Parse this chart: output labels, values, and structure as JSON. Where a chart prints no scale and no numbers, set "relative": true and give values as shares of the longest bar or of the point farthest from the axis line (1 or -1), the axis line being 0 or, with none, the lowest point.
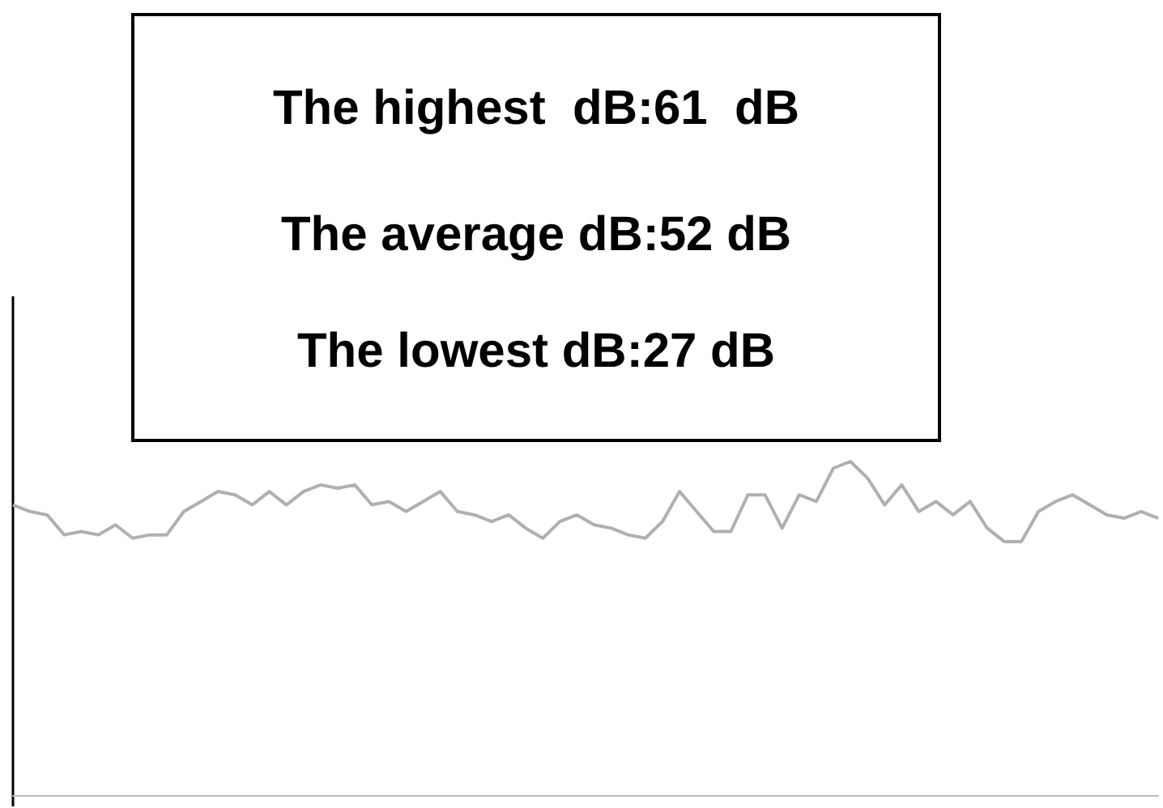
{
  "chart_data": {
    "type": "line",
    "relative": true,
    "marker": "none",
    "annotations": [
      "The highest  dB:61  dB",
      "The average dB:52 dB",
      "The lowest dB:27 dB"
    ],
    "categories": [
      null,
      null,
      null,
      null,
      null,
      null,
      null,
      null,
      null,
      null,
      null,
      null,
      null,
      null,
      null,
      null,
      null,
      null,
      null,
      null,
      null,
      null,
      null,
      null,
      null,
      null,
      null,
      null,
      null,
      null,
      null,
      null,
      null,
      null,
      null,
      null,
      null,
      null,
      null,
      null,
      null,
      null,
      null,
      null,
      null,
      null,
      null,
      null,
      null,
      null,
      null,
      null,
      null,
      null,
      null,
      null,
      null,
      null,
      null,
      null,
      null,
      null,
      null,
      null,
      null,
      null,
      null,
      null
    ],
    "series": [
      {
        "color": "#b0b0b0",
        "values": [
          0.87,
          0.85,
          0.84,
          0.78,
          0.79,
          0.78,
          0.81,
          0.77,
          0.78,
          0.78,
          0.85,
          0.88,
          0.91,
          0.9,
          0.87,
          0.91,
          0.87,
          0.91,
          0.93,
          0.92,
          0.93,
          0.87,
          0.88,
          0.85,
          0.88,
          0.91,
          0.85,
          0.84,
          0.82,
          0.84,
          0.8,
          0.77,
          0.82,
          0.84,
          0.81,
          0.8,
          0.78,
          0.77,
          0.82,
          0.91,
          0.85,
          0.79,
          0.79,
          0.9,
          0.9,
          0.8,
          0.9,
          0.88,
          0.98,
          1,
          0.95,
          0.87,
          0.93,
          0.85,
          0.88,
          0.84,
          0.88,
          0.8,
          0.76,
          0.76,
          0.85,
          0.88,
          0.9,
          0.87,
          0.84,
          0.83,
          0.85,
          0.83
        ]
      }
    ]
  }
}
